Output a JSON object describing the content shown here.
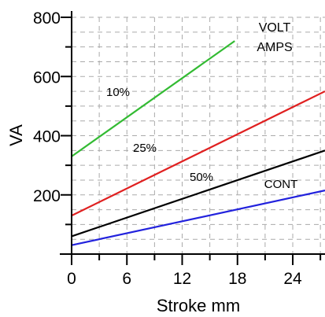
{
  "chart_data": {
    "type": "line",
    "title": "",
    "xlabel": "Stroke mm",
    "ylabel": "VA",
    "xlim": [
      0,
      27.5
    ],
    "ylim": [
      0,
      800
    ],
    "x_ticks": [
      0,
      6,
      12,
      18,
      24
    ],
    "y_ticks": [
      200,
      400,
      600,
      800
    ],
    "x_tick_labels": [
      "0",
      "6",
      "12",
      "18",
      "24"
    ],
    "y_tick_labels": [
      "200",
      "400",
      "600",
      "800"
    ],
    "grid": true,
    "annotation": [
      "VOLT",
      "AMPS"
    ],
    "series": [
      {
        "name": "10%",
        "color": "#33bb33",
        "x": [
          0,
          17.7
        ],
        "y": [
          330,
          720
        ]
      },
      {
        "name": "25%",
        "color": "#e02020",
        "x": [
          0,
          27.5
        ],
        "y": [
          130,
          550
        ]
      },
      {
        "name": "50%",
        "color": "#000000",
        "x": [
          0,
          27.5
        ],
        "y": [
          60,
          350
        ]
      },
      {
        "name": "CONT",
        "color": "#2222dd",
        "x": [
          0,
          27.5
        ],
        "y": [
          30,
          215
        ]
      }
    ]
  }
}
